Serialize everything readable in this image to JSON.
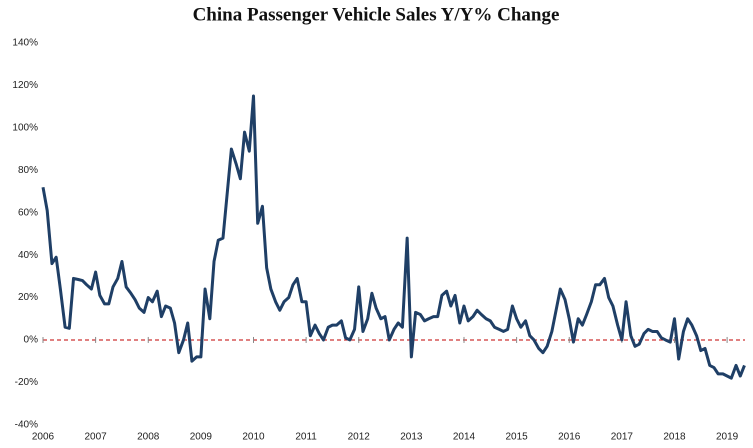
{
  "chart_data": {
    "type": "line",
    "title": "China Passenger Vehicle Sales Y/Y% Change",
    "x": [
      2006.0,
      2006.08,
      2006.17,
      2006.25,
      2006.33,
      2006.42,
      2006.5,
      2006.58,
      2006.67,
      2006.75,
      2006.83,
      2006.92,
      2007.0,
      2007.08,
      2007.17,
      2007.25,
      2007.33,
      2007.42,
      2007.5,
      2007.58,
      2007.67,
      2007.75,
      2007.83,
      2007.92,
      2008.0,
      2008.08,
      2008.17,
      2008.25,
      2008.33,
      2008.42,
      2008.5,
      2008.58,
      2008.67,
      2008.75,
      2008.83,
      2008.92,
      2009.0,
      2009.08,
      2009.17,
      2009.25,
      2009.33,
      2009.42,
      2009.5,
      2009.58,
      2009.67,
      2009.75,
      2009.83,
      2009.92,
      2010.0,
      2010.08,
      2010.17,
      2010.25,
      2010.33,
      2010.42,
      2010.5,
      2010.58,
      2010.67,
      2010.75,
      2010.83,
      2010.92,
      2011.0,
      2011.08,
      2011.17,
      2011.25,
      2011.33,
      2011.42,
      2011.5,
      2011.58,
      2011.67,
      2011.75,
      2011.83,
      2011.92,
      2012.0,
      2012.08,
      2012.17,
      2012.25,
      2012.33,
      2012.42,
      2012.5,
      2012.58,
      2012.67,
      2012.75,
      2012.83,
      2012.92,
      2013.0,
      2013.08,
      2013.17,
      2013.25,
      2013.33,
      2013.42,
      2013.5,
      2013.58,
      2013.67,
      2013.75,
      2013.83,
      2013.92,
      2014.0,
      2014.08,
      2014.17,
      2014.25,
      2014.33,
      2014.42,
      2014.5,
      2014.58,
      2014.67,
      2014.75,
      2014.83,
      2014.92,
      2015.0,
      2015.08,
      2015.17,
      2015.25,
      2015.33,
      2015.42,
      2015.5,
      2015.58,
      2015.67,
      2015.75,
      2015.83,
      2015.92,
      2016.0,
      2016.08,
      2016.17,
      2016.25,
      2016.33,
      2016.42,
      2016.5,
      2016.58,
      2016.67,
      2016.75,
      2016.83,
      2016.92,
      2017.0,
      2017.08,
      2017.17,
      2017.25,
      2017.33,
      2017.42,
      2017.5,
      2017.58,
      2017.67,
      2017.75,
      2017.83,
      2017.92,
      2018.0,
      2018.08,
      2018.17,
      2018.25,
      2018.33,
      2018.42,
      2018.5,
      2018.58,
      2018.67,
      2018.75,
      2018.83,
      2018.92,
      2019.0,
      2019.08,
      2019.17,
      2019.25,
      2019.33
    ],
    "series": [
      {
        "name": "Passenger Vehicle Sales Y/Y%",
        "color": "#1f3f66",
        "values": [
          72,
          61,
          36,
          39,
          24,
          6,
          5.5,
          29,
          28.5,
          28,
          26,
          24,
          32,
          21,
          17,
          17,
          25,
          29,
          37,
          25,
          22,
          19,
          15,
          13,
          20,
          18,
          23,
          11,
          16,
          15,
          8,
          -6,
          0,
          8,
          -10,
          -8,
          -8,
          24,
          10,
          37,
          47,
          48,
          69,
          90,
          83,
          76,
          98,
          89,
          115,
          55,
          63,
          34,
          24,
          18,
          14,
          18,
          20,
          26,
          29,
          18,
          18,
          2,
          7,
          3,
          0,
          6,
          7,
          7,
          9,
          1,
          0,
          5,
          25,
          4,
          10,
          22,
          15,
          10,
          11,
          0,
          5,
          8,
          6,
          48,
          -8,
          13,
          12,
          9,
          10,
          11,
          11,
          21,
          23,
          16,
          21,
          8,
          16,
          9,
          11,
          14,
          12,
          10,
          9,
          6,
          5,
          4,
          5,
          16,
          10,
          6,
          9,
          2,
          0,
          -4,
          -6,
          -3,
          4,
          14,
          24,
          19,
          10,
          -1,
          10,
          7,
          12,
          18,
          26,
          26,
          29,
          20,
          16,
          7,
          0,
          18,
          2,
          -3,
          -2,
          3,
          5,
          4,
          4,
          1,
          0,
          -1,
          10,
          -9,
          4,
          10,
          7,
          2,
          -5,
          -4,
          -12,
          -13,
          -16,
          -16,
          -17,
          -18,
          -12,
          -17,
          -12
        ]
      }
    ],
    "xlim": [
      2006,
      2019.34
    ],
    "xticks": [
      2006,
      2007,
      2008,
      2009,
      2010,
      2011,
      2012,
      2013,
      2014,
      2015,
      2016,
      2017,
      2018,
      2019
    ],
    "ylim": [
      -40,
      140
    ],
    "yticks": [
      {
        "value": -40,
        "label": "-40%"
      },
      {
        "value": -20,
        "label": "-20%"
      },
      {
        "value": 0,
        "label": "0%"
      },
      {
        "value": 20,
        "label": "20%"
      },
      {
        "value": 40,
        "label": "40%"
      },
      {
        "value": 60,
        "label": "60%"
      },
      {
        "value": 80,
        "label": "80%"
      },
      {
        "value": 100,
        "label": "100%"
      },
      {
        "value": 120,
        "label": "120%"
      },
      {
        "value": 140,
        "label": "140%"
      }
    ],
    "zero_line": {
      "value": 0,
      "color": "#c00000"
    }
  }
}
